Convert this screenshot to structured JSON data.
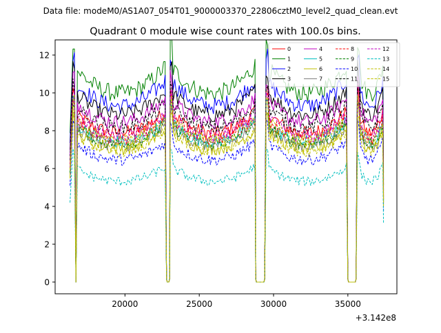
{
  "suptitle": "Data file: modeM0/AS1A07_054T01_9000003370_22806cztM0_level2_quad_clean.evt",
  "chart_data": {
    "type": "line",
    "title": "Quadrant 0 module wise count rates with 100.0s bins.",
    "xlabel": "",
    "ylabel": "",
    "x_offset_label": "+3.142e8",
    "xlim": [
      15300,
      38300
    ],
    "ylim": [
      -0.62,
      12.8
    ],
    "xticks": [
      20000,
      25000,
      30000,
      35000
    ],
    "xtick_labels": [
      "20000",
      "25000",
      "30000",
      "35000"
    ],
    "yticks": [
      0,
      2,
      4,
      6,
      8,
      10,
      12
    ],
    "ytick_labels": [
      "0",
      "2",
      "4",
      "6",
      "8",
      "10",
      "12"
    ],
    "grid": false,
    "legend_position": "top-right",
    "legend_columns": 4,
    "bin_seconds": 100,
    "orbit_segments": [
      {
        "start": 16500,
        "end": 22750,
        "drop_start": 16650,
        "drop_end": 16750
      },
      {
        "start": 23050,
        "end": 28750,
        "drop_start": null,
        "drop_end": null
      },
      {
        "start": 29500,
        "end": 34900,
        "drop_start": null,
        "drop_end": null
      },
      {
        "start": 35650,
        "end": 37350,
        "drop_start": null,
        "drop_end": null
      }
    ],
    "gaps": [
      {
        "start": 22800,
        "end": 23000
      },
      {
        "start": 28800,
        "end": 29400
      },
      {
        "start": 35000,
        "end": 35550
      }
    ],
    "series": [
      {
        "name": "0",
        "color": "#ff0000",
        "style": "solid",
        "level": 8.3
      },
      {
        "name": "1",
        "color": "#008000",
        "style": "solid",
        "level": 10.5
      },
      {
        "name": "2",
        "color": "#0000ff",
        "style": "solid",
        "level": 9.8
      },
      {
        "name": "3",
        "color": "#000000",
        "style": "solid",
        "level": 9.3
      },
      {
        "name": "4",
        "color": "#bf00bf",
        "style": "solid",
        "level": 8.9
      },
      {
        "name": "5",
        "color": "#00bfbf",
        "style": "solid",
        "level": 7.8
      },
      {
        "name": "6",
        "color": "#bfbf00",
        "style": "solid",
        "level": 7.4
      },
      {
        "name": "7",
        "color": "#808080",
        "style": "solid",
        "level": 7.6
      },
      {
        "name": "8",
        "color": "#ff0000",
        "style": "dashed",
        "level": 8.0
      },
      {
        "name": "9",
        "color": "#008000",
        "style": "dashed",
        "level": 7.7
      },
      {
        "name": "10",
        "color": "#0000ff",
        "style": "dashed",
        "level": 6.8
      },
      {
        "name": "11",
        "color": "#000000",
        "style": "dashed",
        "level": 8.6
      },
      {
        "name": "12",
        "color": "#bf00bf",
        "style": "dashed",
        "level": 8.1
      },
      {
        "name": "13",
        "color": "#00bfbf",
        "style": "dashed",
        "level": 5.6
      },
      {
        "name": "14",
        "color": "#bfbf00",
        "style": "dashed",
        "level": 7.3
      },
      {
        "name": "15",
        "color": "#bfbf00",
        "style": "dashed",
        "level": 7.9
      }
    ]
  }
}
